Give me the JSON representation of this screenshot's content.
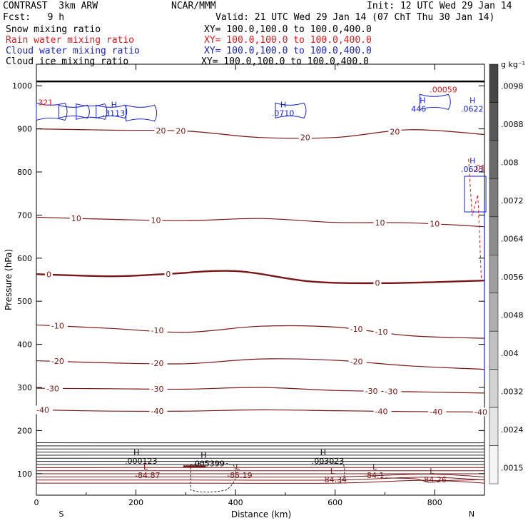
{
  "header": {
    "model": "CONTRAST  3km ARW",
    "org": "NCAR/MMM",
    "init": "Init: 12 UTC Wed 29 Jan 14",
    "fcst": "Fcst:   9 h",
    "valid": "Valid: 21 UTC Wed 29 Jan 14 (07 ChT Thu 30 Jan 14)"
  },
  "fields": [
    {
      "label": "Snow mixing ratio",
      "xy": "XY= 100.0,100.0 to 100.0,400.0",
      "color": "#000000"
    },
    {
      "label": "Rain water mixing ratio",
      "xy": "XY= 100.0,100.0 to 100.0,400.0",
      "color": "#e0191b"
    },
    {
      "label": "Cloud water mixing ratio",
      "xy": "XY= 100.0,100.0 to 100.0,400.0",
      "color": "#1822c8"
    },
    {
      "label": "Cloud ice mixing ratio",
      "xy": "XY= 100.0,100.0 to 100.0,400.0",
      "color": "#000000"
    }
  ],
  "chart_data": {
    "type": "contour",
    "xlabel": "Distance (km)",
    "ylabel": "Pressure (hPa)",
    "xlim": [
      0,
      900
    ],
    "ylim": [
      1050,
      50
    ],
    "x_ticks": [
      0,
      200,
      400,
      600,
      800
    ],
    "y_ticks": [
      100,
      200,
      300,
      400,
      500,
      600,
      700,
      800,
      900,
      1000
    ],
    "x_end_labels": {
      "left": "S",
      "right": "N"
    },
    "isotherm_color": "#7a1616",
    "temperature_contours": [
      {
        "value": -40,
        "labels": [
          "-40",
          "-40",
          "-40",
          "-40",
          "-40"
        ],
        "points": [
          [
            0,
            248
          ],
          [
            150,
            245
          ],
          [
            300,
            245
          ],
          [
            450,
            248
          ],
          [
            600,
            246
          ],
          [
            750,
            244
          ],
          [
            900,
            243
          ]
        ]
      },
      {
        "value": -30,
        "labels": [
          "-30",
          "-30",
          "-30",
          "-30"
        ],
        "points": [
          [
            0,
            298
          ],
          [
            150,
            297
          ],
          [
            300,
            296
          ],
          [
            450,
            300
          ],
          [
            600,
            293
          ],
          [
            750,
            290
          ],
          [
            900,
            287
          ]
        ]
      },
      {
        "value": -20,
        "labels": [
          "-20",
          "-20",
          "-20"
        ],
        "points": [
          [
            0,
            362
          ],
          [
            150,
            357
          ],
          [
            300,
            355
          ],
          [
            450,
            366
          ],
          [
            600,
            363
          ],
          [
            750,
            350
          ],
          [
            900,
            342
          ]
        ]
      },
      {
        "value": -10,
        "labels": [
          "-10",
          "-10",
          "-10",
          "-10"
        ],
        "points": [
          [
            0,
            445
          ],
          [
            150,
            437
          ],
          [
            300,
            428
          ],
          [
            450,
            442
          ],
          [
            600,
            440
          ],
          [
            750,
            420
          ],
          [
            900,
            414
          ]
        ]
      },
      {
        "value": 0,
        "labels": [
          "0",
          "0",
          "0"
        ],
        "points": [
          [
            0,
            563
          ],
          [
            150,
            558
          ],
          [
            260,
            563
          ],
          [
            400,
            570
          ],
          [
            550,
            546
          ],
          [
            700,
            542
          ],
          [
            900,
            548
          ]
        ]
      },
      {
        "value": 10,
        "labels": [
          "10",
          "10",
          "10",
          "10"
        ],
        "points": [
          [
            0,
            695
          ],
          [
            150,
            690
          ],
          [
            300,
            687
          ],
          [
            450,
            692
          ],
          [
            600,
            683
          ],
          [
            750,
            682
          ],
          [
            900,
            673
          ]
        ]
      },
      {
        "value": 20,
        "labels": [
          "20",
          "20",
          "20",
          "20"
        ],
        "points": [
          [
            0,
            900
          ],
          [
            150,
            897
          ],
          [
            300,
            895
          ],
          [
            450,
            880
          ],
          [
            600,
            880
          ],
          [
            750,
            898
          ],
          [
            900,
            887
          ]
        ]
      }
    ],
    "extrema": [
      {
        "type": "L",
        "value": "-84.87",
        "x": 215,
        "p": 110
      },
      {
        "type": "L",
        "value": "-85.19",
        "x": 400,
        "p": 110
      },
      {
        "type": "L",
        "value": "-84.34",
        "x": 590,
        "p": 100
      },
      {
        "type": "L",
        "value": "-84.1",
        "x": 675,
        "p": 110
      },
      {
        "type": "L",
        "value": "-84.26",
        "x": 790,
        "p": 100
      },
      {
        "type": "H",
        "value": ".000123",
        "x": 195,
        "p": 143
      },
      {
        "type": "H",
        "value": ".005399",
        "x": 330,
        "p": 137
      },
      {
        "type": "H",
        "value": ".003023",
        "x": 570,
        "p": 143
      },
      {
        "type": "H",
        "value": ".3113",
        "x": 150,
        "p": 950
      },
      {
        "type": "H",
        "value": ".0710",
        "x": 490,
        "p": 950
      },
      {
        "type": "H",
        "value": "446",
        "x": 770,
        "p": 960
      },
      {
        "type": "H",
        "value": ".0622",
        "x": 870,
        "p": 960
      },
      {
        "type": "H",
        "value": ".0623",
        "x": 870,
        "p": 820
      }
    ],
    "extra_labels": [
      {
        "text": ".00059",
        "x": 790,
        "p": 985,
        "color": "#e0191b"
      },
      {
        "text": ".01",
        "x": 877,
        "p": 803,
        "color": "#e0191b"
      },
      {
        "text": "321",
        "x": 3,
        "p": 955,
        "color": "#e0191b"
      }
    ],
    "colorbar": {
      "unit": "g kg⁻¹",
      "ticks": [
        ".0098",
        ".0088",
        ".008",
        ".0072",
        ".0064",
        ".0056",
        ".0048",
        ".004",
        ".0032",
        ".0024",
        ".0015"
      ]
    }
  }
}
